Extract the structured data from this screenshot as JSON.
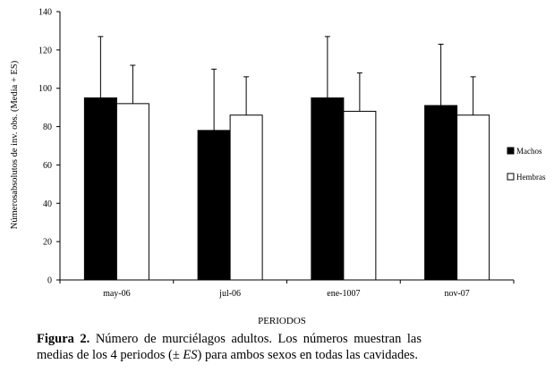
{
  "chart_data": {
    "type": "bar",
    "categories": [
      "may-06",
      "jul-06",
      "ene-1007",
      "nov-07"
    ],
    "series": [
      {
        "name": "Machos",
        "values": [
          95,
          78,
          95,
          91
        ],
        "error": [
          32,
          32,
          32,
          32
        ],
        "color": "#000000"
      },
      {
        "name": "Hembras",
        "values": [
          92,
          86,
          88,
          86
        ],
        "error": [
          20,
          20,
          20,
          20
        ],
        "color": "#ffffff"
      }
    ],
    "title": "",
    "xlabel": "PERIODOS",
    "ylabel": "Númerosabsolutos de inv. obs. (Media + ES)",
    "ylim": [
      0,
      140
    ],
    "yticks": [
      "0",
      "20",
      "40",
      "60",
      "80",
      "100",
      "120",
      "140"
    ],
    "grid": false,
    "legend_position": "right"
  },
  "caption": {
    "label": "Figura 2.",
    "text_1": " Número de murciélagos adultos. Los números muestran las medias de los 4 periodos (± ",
    "text_italic": "ES",
    "text_2": ") para ambos sexos en todas las cavidades."
  }
}
